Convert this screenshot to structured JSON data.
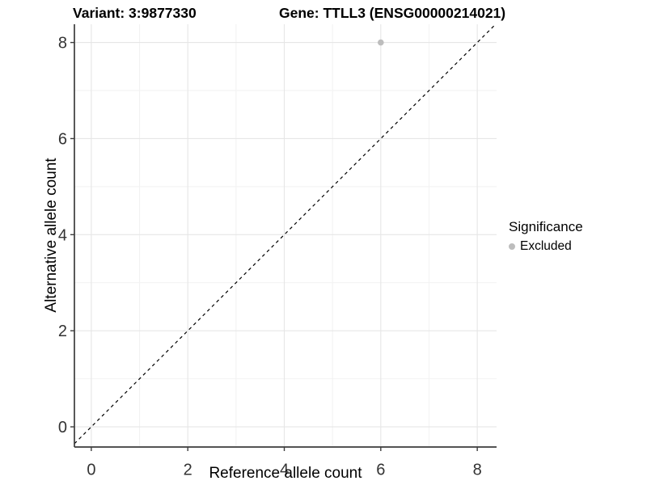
{
  "titles": {
    "variant": "Variant: 3:9877330",
    "gene": "Gene: TTLL3 (ENSG00000214021)"
  },
  "legend": {
    "title": "Significance",
    "items": [
      {
        "label": "Excluded",
        "color": "#bdbdbd"
      }
    ]
  },
  "chart_data": {
    "type": "scatter",
    "title_left": "Variant: 3:9877330",
    "title_right": "Gene: TTLL3 (ENSG00000214021)",
    "xlabel": "Reference allele count",
    "ylabel": "Alternative allele count",
    "xticks": [
      0,
      2,
      4,
      6,
      8
    ],
    "yticks": [
      0,
      2,
      4,
      6,
      8
    ],
    "minor_xticks": [
      1,
      3,
      5,
      7
    ],
    "minor_yticks": [
      1,
      3,
      5,
      7
    ],
    "xlim": [
      -0.35,
      8.4
    ],
    "ylim": [
      -0.42,
      8.38
    ],
    "grid": "major+minor",
    "legend_position": "right",
    "points": [
      {
        "x": 6,
        "y": 8,
        "series": "Excluded",
        "color": "#bdbdbd"
      }
    ],
    "reference_line": {
      "equation": "y=x",
      "style": "dashed",
      "color": "#000000"
    }
  },
  "colors": {
    "background": "#ffffff",
    "major_grid": "#e6e6e6",
    "minor_grid": "#f2f2f2",
    "axis_line": "#3c3c3c",
    "axis_text": "#333333",
    "point": "#bdbdbd",
    "reference_line": "#000000"
  }
}
